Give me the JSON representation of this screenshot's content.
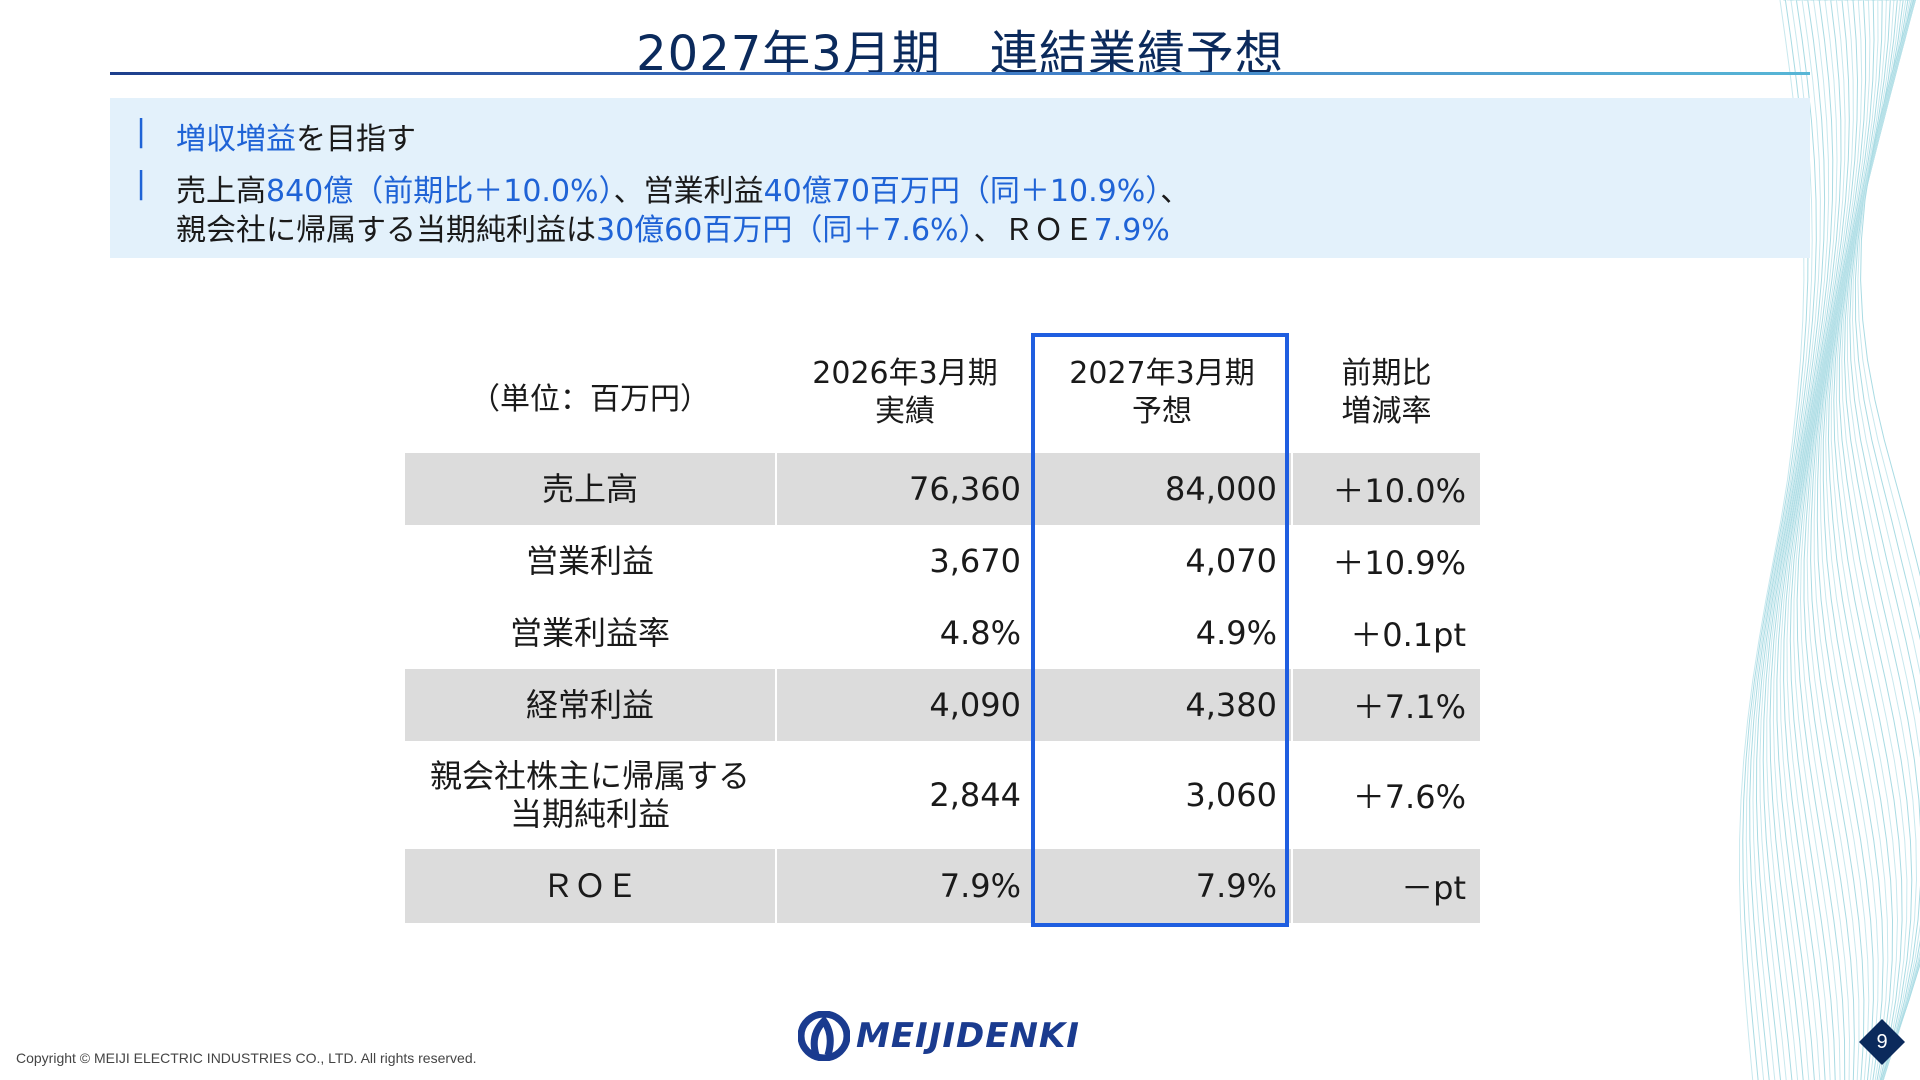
{
  "title": "2027年3月期　連結業績予想",
  "summary": {
    "line1": {
      "hl": "増収増益",
      "rest": "を目指す"
    },
    "line2": [
      {
        "t": "売上高",
        "h": false
      },
      {
        "t": "840億（前期比＋10.0%）",
        "h": true
      },
      {
        "t": "、営業利益",
        "h": false
      },
      {
        "t": "40億70百万円（同＋10.9%）",
        "h": true
      },
      {
        "t": "、",
        "h": false
      }
    ],
    "line3": [
      {
        "t": "親会社に帰属する当期純利益は",
        "h": false
      },
      {
        "t": "30億60百万円（同＋7.6%）",
        "h": true
      },
      {
        "t": "、ＲＯＥ",
        "h": false
      },
      {
        "t": "7.9%",
        "h": true
      }
    ]
  },
  "table": {
    "unit": "（単位：百万円）",
    "col_prev": [
      "2026年3月期",
      "実績"
    ],
    "col_curr": [
      "2027年3月期",
      "予想"
    ],
    "col_chg": [
      "前期比",
      "増減率"
    ],
    "rows": [
      {
        "label": [
          "売上高"
        ],
        "prev": "76,360",
        "curr": "84,000",
        "chg": "＋10.0%"
      },
      {
        "label": [
          "営業利益"
        ],
        "prev": "3,670",
        "curr": "4,070",
        "chg": "＋10.9%"
      },
      {
        "label": [
          "営業利益率"
        ],
        "prev": "4.8%",
        "curr": "4.9%",
        "chg": "＋0.1pt"
      },
      {
        "label": [
          "経常利益"
        ],
        "prev": "4,090",
        "curr": "4,380",
        "chg": "＋7.1%"
      },
      {
        "label": [
          "親会社株主に帰属する",
          "当期純利益"
        ],
        "prev": "2,844",
        "curr": "3,060",
        "chg": "＋7.6%"
      },
      {
        "label": [
          "ＲＯＥ"
        ],
        "prev": "7.9%",
        "curr": "7.9%",
        "chg": "－pt"
      }
    ]
  },
  "footer": {
    "copyright": "Copyright © MEIJI ELECTRIC INDUSTRIES CO., LTD. All rights reserved.",
    "logo": "MEIJIDENKI",
    "page": "9"
  },
  "colors": {
    "accent": "#1f63d6",
    "title": "#0b2a5c",
    "shade": "#dcdcdc",
    "box": "#1f5ee0"
  }
}
